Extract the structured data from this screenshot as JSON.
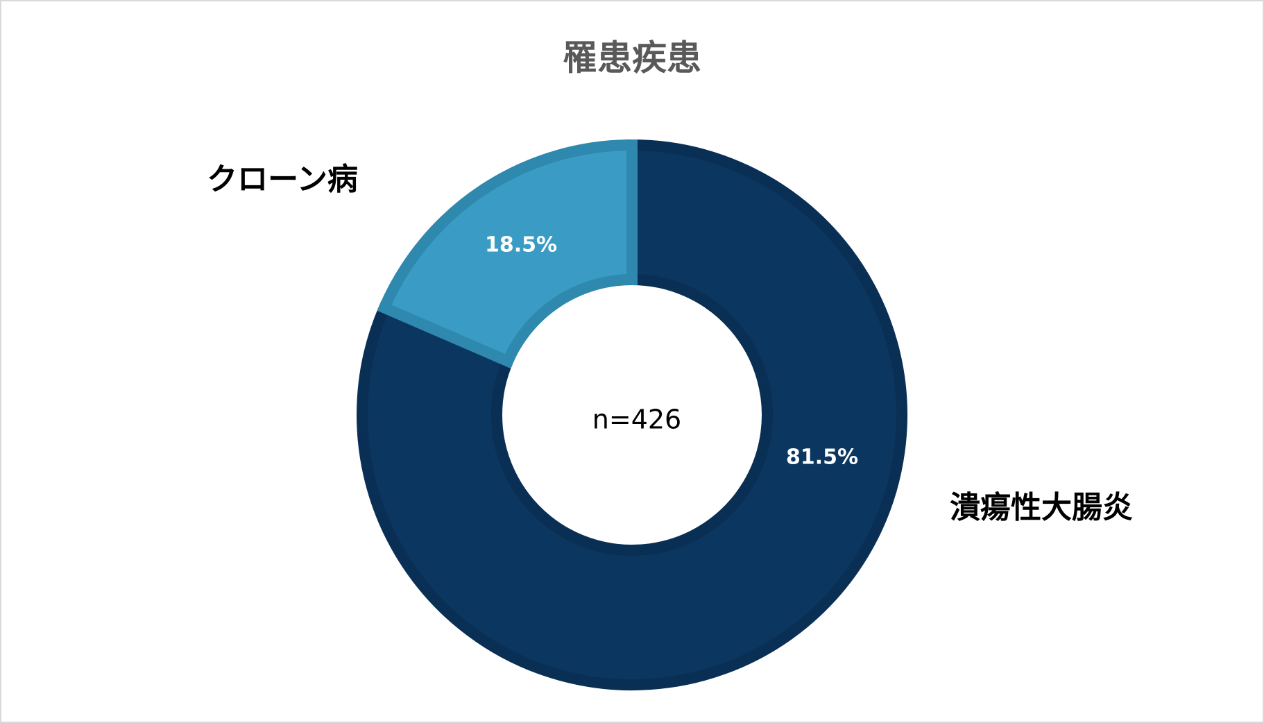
{
  "chart_data": {
    "type": "donut",
    "title": "罹患疾患",
    "categories": [
      "潰瘍性大腸炎",
      "クローン病"
    ],
    "values": [
      81.5,
      18.5
    ],
    "value_labels": [
      "81.5%",
      "18.5%"
    ],
    "colors": [
      "#0b3660",
      "#3a9cc5"
    ],
    "center_label": "n=426"
  }
}
